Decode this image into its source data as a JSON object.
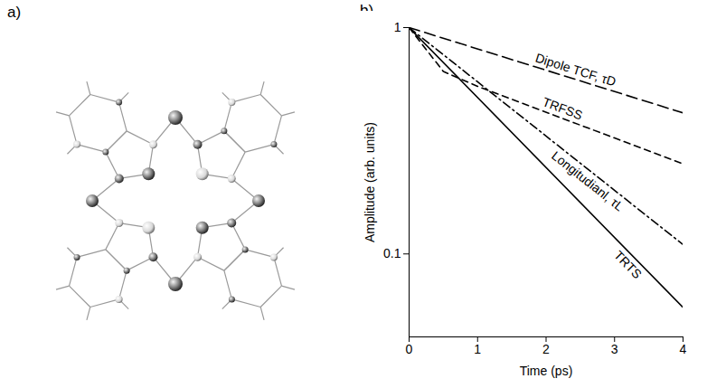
{
  "diagram": {
    "label": "a)"
  },
  "chart_data": {
    "type": "line",
    "label": "b)",
    "xlabel": "Time (ps)",
    "ylabel": "Amplitude (arb. units)",
    "xlim": [
      0,
      4
    ],
    "xticks": [
      0,
      1,
      2,
      3,
      4
    ],
    "ylim": [
      0.043,
      1
    ],
    "yticks": [
      1,
      0.1
    ],
    "log": "y",
    "grid": false,
    "series": [
      {
        "name": "Dipole TCF, τD",
        "color": "#000000",
        "line_style": "longdash",
        "x": [
          0,
          4
        ],
        "values": [
          1,
          0.42
        ]
      },
      {
        "name": "TRFSS",
        "color": "#000000",
        "line_style": "dashed",
        "x": [
          0,
          0.5,
          1,
          4
        ],
        "values": [
          1,
          0.64,
          0.55,
          0.25
        ]
      },
      {
        "name": "Longitudianl, τL",
        "color": "#000000",
        "line_style": "dashdot",
        "x": [
          0,
          4
        ],
        "values": [
          1,
          0.11
        ]
      },
      {
        "name": "TRTS",
        "color": "#000000",
        "line_style": "solid",
        "x": [
          0,
          4
        ],
        "values": [
          1,
          0.058
        ]
      }
    ]
  }
}
